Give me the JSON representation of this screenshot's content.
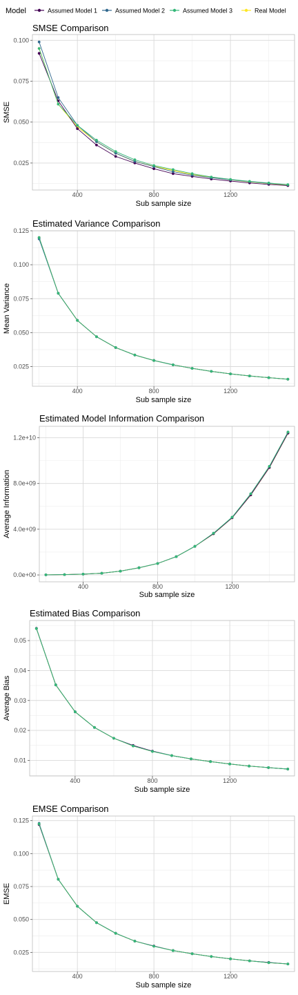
{
  "legend": {
    "title": "Model",
    "items": [
      {
        "name": "Assumed Model 1",
        "color": "#440154"
      },
      {
        "name": "Assumed Model 2",
        "color": "#31688e"
      },
      {
        "name": "Assumed Model 3",
        "color": "#35b779"
      },
      {
        "name": "Real Model",
        "color": "#fde725"
      }
    ],
    "placement": "top"
  },
  "chart_data": [
    {
      "type": "line",
      "title": "SMSE Comparison",
      "xlabel": "Sub sample size",
      "ylabel": "SMSE",
      "x": [
        200,
        300,
        400,
        500,
        600,
        700,
        800,
        900,
        1000,
        1100,
        1200,
        1300,
        1400,
        1500
      ],
      "xticks": [
        "400",
        "800",
        "1200"
      ],
      "xtick_values": [
        400,
        800,
        1200
      ],
      "yticks": [
        "0.025",
        "0.050",
        "0.075",
        "0.100"
      ],
      "ytick_values": [
        0.025,
        0.05,
        0.075,
        0.1
      ],
      "xlim": [
        165,
        1535
      ],
      "ylim": [
        0.0085,
        0.1035
      ],
      "grid": true,
      "series": [
        {
          "name": "Assumed Model 1",
          "values": [
            0.092,
            0.063,
            0.046,
            0.036,
            0.029,
            0.025,
            0.0215,
            0.0185,
            0.0168,
            0.0152,
            0.014,
            0.0128,
            0.0119,
            0.0112
          ]
        },
        {
          "name": "Assumed Model 2",
          "values": [
            0.099,
            0.065,
            0.048,
            0.038,
            0.031,
            0.026,
            0.0228,
            0.0197,
            0.0176,
            0.016,
            0.0148,
            0.0136,
            0.0126,
            0.0117
          ]
        },
        {
          "name": "Assumed Model 3",
          "values": [
            0.095,
            0.061,
            0.048,
            0.039,
            0.032,
            0.027,
            0.0235,
            0.021,
            0.0185,
            0.0165,
            0.015,
            0.0138,
            0.0128,
            0.0118
          ]
        },
        {
          "name": "Real Model",
          "values": [
            0.095,
            0.061,
            0.047,
            0.038,
            0.031,
            0.026,
            0.023,
            0.0205,
            0.018,
            0.0162,
            0.0148,
            0.0135,
            0.0125,
            0.0115
          ]
        }
      ]
    },
    {
      "type": "line",
      "title": "Estimated Variance Comparison",
      "xlabel": "Sub sample size",
      "ylabel": "Mean Variance",
      "x": [
        200,
        300,
        400,
        500,
        600,
        700,
        800,
        900,
        1000,
        1100,
        1200,
        1300,
        1400,
        1500
      ],
      "xticks": [
        "400",
        "800",
        "1200"
      ],
      "xtick_values": [
        400,
        800,
        1200
      ],
      "yticks": [
        "0.025",
        "0.050",
        "0.075",
        "0.100",
        "0.125"
      ],
      "ytick_values": [
        0.025,
        0.05,
        0.075,
        0.1,
        0.125
      ],
      "xlim": [
        165,
        1535
      ],
      "ylim": [
        0.0105,
        0.125
      ],
      "grid": true,
      "series": [
        {
          "name": "Assumed Model 1",
          "values": [
            0.12,
            0.079,
            0.059,
            0.047,
            0.039,
            0.0335,
            0.0295,
            0.0263,
            0.0237,
            0.0215,
            0.0196,
            0.0181,
            0.0168,
            0.0157
          ]
        },
        {
          "name": "Assumed Model 2",
          "values": [
            0.119,
            0.079,
            0.059,
            0.047,
            0.039,
            0.0335,
            0.0295,
            0.0263,
            0.0237,
            0.0215,
            0.0196,
            0.0181,
            0.0168,
            0.0157
          ]
        },
        {
          "name": "Assumed Model 3",
          "values": [
            0.12,
            0.079,
            0.059,
            0.047,
            0.039,
            0.0335,
            0.0295,
            0.0263,
            0.0237,
            0.0215,
            0.0196,
            0.0181,
            0.0168,
            0.0157
          ]
        },
        {
          "name": "Real Model",
          "values": [
            0.12,
            0.079,
            0.059,
            0.047,
            0.039,
            0.0335,
            0.0295,
            0.0263,
            0.0237,
            0.0215,
            0.0196,
            0.0181,
            0.0168,
            0.0157
          ]
        }
      ]
    },
    {
      "type": "line",
      "title": "Estimated Model Information Comparison",
      "xlabel": "Sub sample size",
      "ylabel": "Average Information",
      "x": [
        200,
        300,
        400,
        500,
        600,
        700,
        800,
        900,
        1000,
        1100,
        1200,
        1300,
        1400,
        1500
      ],
      "xticks": [
        "400",
        "800",
        "1200"
      ],
      "xtick_values": [
        400,
        800,
        1200
      ],
      "yticks": [
        "0.0e+00",
        "4.0e+09",
        "8.0e+09",
        "1.2e+10"
      ],
      "ytick_values": [
        0,
        4000000000,
        8000000000,
        12000000000
      ],
      "xlim": [
        165,
        1535
      ],
      "ylim": [
        -600000000,
        13000000000
      ],
      "grid": true,
      "series": [
        {
          "name": "Assumed Model 1",
          "values": [
            10000000,
            30000000,
            70000000,
            150000000,
            330000000,
            630000000,
            1000000000,
            1600000000,
            2500000000,
            3600000000,
            5000000000,
            7000000000,
            9400000000,
            12400000000
          ]
        },
        {
          "name": "Assumed Model 2",
          "values": [
            10000000,
            30000000,
            70000000,
            150000000,
            330000000,
            630000000,
            1000000000,
            1600000000,
            2500000000,
            3650000000,
            5050000000,
            7100000000,
            9500000000,
            12500000000
          ]
        },
        {
          "name": "Assumed Model 3",
          "values": [
            10000000,
            30000000,
            70000000,
            150000000,
            330000000,
            630000000,
            1000000000,
            1600000000,
            2500000000,
            3650000000,
            5050000000,
            7100000000,
            9500000000,
            12500000000
          ]
        },
        {
          "name": "Real Model",
          "values": [
            10000000,
            30000000,
            70000000,
            150000000,
            330000000,
            630000000,
            1000000000,
            1600000000,
            2500000000,
            3600000000,
            5000000000,
            7000000000,
            9400000000,
            12400000000
          ]
        }
      ]
    },
    {
      "type": "line",
      "title": "Estimated Bias Comparison",
      "xlabel": "Sub sample size",
      "ylabel": "Average Bias",
      "x": [
        200,
        300,
        400,
        500,
        600,
        700,
        800,
        900,
        1000,
        1100,
        1200,
        1300,
        1400,
        1500
      ],
      "xticks": [
        "400",
        "800",
        "1200"
      ],
      "xtick_values": [
        400,
        800,
        1200
      ],
      "yticks": [
        "0.01",
        "0.02",
        "0.03",
        "0.04",
        "0.05"
      ],
      "ytick_values": [
        0.01,
        0.02,
        0.03,
        0.04,
        0.05
      ],
      "xlim": [
        165,
        1535
      ],
      "ylim": [
        0.0048,
        0.0567
      ],
      "grid": true,
      "series": [
        {
          "name": "Assumed Model 1",
          "values": [
            0.0541,
            0.0352,
            0.0262,
            0.021,
            0.0174,
            0.015,
            0.0131,
            0.0116,
            0.0105,
            0.0096,
            0.0088,
            0.0081,
            0.0076,
            0.0071
          ]
        },
        {
          "name": "Assumed Model 2",
          "values": [
            0.054,
            0.0352,
            0.0262,
            0.021,
            0.0174,
            0.0148,
            0.013,
            0.0116,
            0.0105,
            0.0096,
            0.0088,
            0.0081,
            0.0076,
            0.0071
          ]
        },
        {
          "name": "Assumed Model 3",
          "values": [
            0.054,
            0.0352,
            0.0262,
            0.021,
            0.0174,
            0.0148,
            0.013,
            0.0116,
            0.0105,
            0.0096,
            0.0088,
            0.0081,
            0.0076,
            0.0071
          ]
        },
        {
          "name": "Real Model",
          "values": [
            0.054,
            0.0352,
            0.0262,
            0.021,
            0.0174,
            0.0148,
            0.013,
            0.0116,
            0.0105,
            0.0096,
            0.0088,
            0.0081,
            0.0076,
            0.0071
          ]
        }
      ]
    },
    {
      "type": "line",
      "title": "EMSE Comparison",
      "xlabel": "Sub sample size",
      "ylabel": "EMSE",
      "x": [
        200,
        300,
        400,
        500,
        600,
        700,
        800,
        900,
        1000,
        1100,
        1200,
        1300,
        1400,
        1500
      ],
      "xticks": [
        "400",
        "800",
        "1200"
      ],
      "xtick_values": [
        400,
        800,
        1200
      ],
      "yticks": [
        "0.025",
        "0.050",
        "0.075",
        "0.100",
        "0.125"
      ],
      "ytick_values": [
        0.025,
        0.05,
        0.075,
        0.1,
        0.125
      ],
      "xlim": [
        165,
        1535
      ],
      "ylim": [
        0.0105,
        0.1285
      ],
      "grid": true,
      "series": [
        {
          "name": "Assumed Model 1",
          "values": [
            0.122,
            0.0805,
            0.06,
            0.0476,
            0.0395,
            0.0336,
            0.0299,
            0.0264,
            0.024,
            0.0219,
            0.0201,
            0.0186,
            0.0174,
            0.0162
          ]
        },
        {
          "name": "Assumed Model 2",
          "values": [
            0.123,
            0.0805,
            0.06,
            0.0476,
            0.0395,
            0.0336,
            0.0297,
            0.0264,
            0.024,
            0.0219,
            0.0201,
            0.0186,
            0.0172,
            0.0162
          ]
        },
        {
          "name": "Assumed Model 3",
          "values": [
            0.1225,
            0.0805,
            0.06,
            0.0476,
            0.0395,
            0.0336,
            0.0297,
            0.0264,
            0.024,
            0.0219,
            0.0201,
            0.0186,
            0.0172,
            0.0162
          ]
        },
        {
          "name": "Real Model",
          "values": [
            0.1225,
            0.0805,
            0.06,
            0.0476,
            0.0395,
            0.0336,
            0.0297,
            0.0264,
            0.024,
            0.0219,
            0.0201,
            0.0186,
            0.0172,
            0.0162
          ]
        }
      ]
    }
  ]
}
